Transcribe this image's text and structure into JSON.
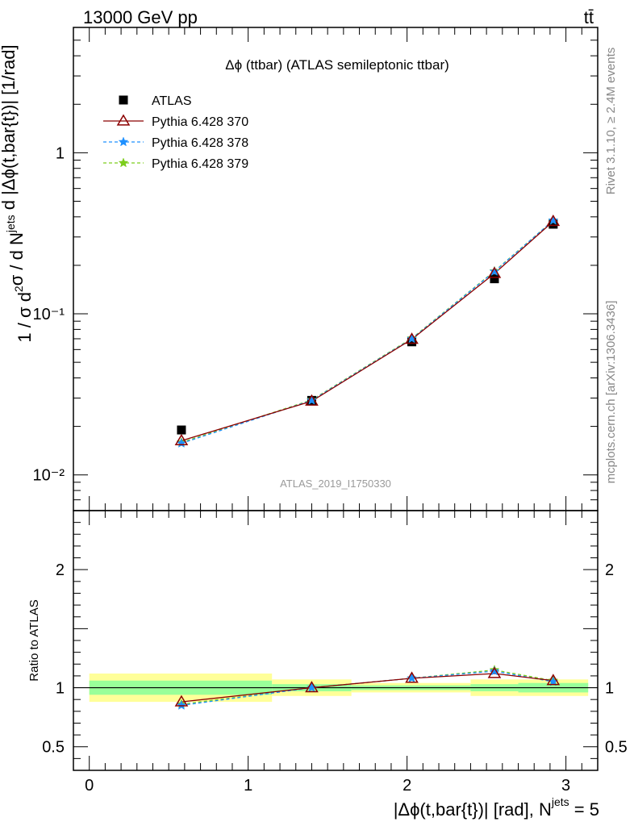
{
  "header": {
    "energy_label": "13000 GeV pp",
    "process_label": "tt̄"
  },
  "side_labels": {
    "rivet": "Rivet 3.1.10, ≥ 2.4M events",
    "source": "mcplots.cern.ch [arXiv:1306.3436]"
  },
  "chart_data": {
    "type": "line",
    "title": "Δϕ (ttbar) (ATLAS semileptonic ttbar)",
    "watermark": "ATLAS_2019_I1750330",
    "xlabel": "|Δϕ(t,bar{t})| [rad], N^jets = 5",
    "ylabel": "1 / σ d²σ / d N^jets d |Δϕ(t,bar{t})| [1/rad]",
    "ratio_ylabel": "Ratio to ATLAS",
    "xlim": [
      -0.1,
      3.2
    ],
    "ylim": [
      0.006,
      6.0
    ],
    "y_scale": "log",
    "ratio_ylim": [
      0.3,
      2.5
    ],
    "x_ticks": [
      "0",
      "1",
      "2",
      "3"
    ],
    "y_ticks": [
      "1",
      "10⁻¹",
      "10⁻²"
    ],
    "ratio_ticks": [
      "0.5",
      "1",
      "2"
    ],
    "legend_position": "top-left",
    "x": [
      0.58,
      1.4,
      2.03,
      2.55,
      2.92
    ],
    "data": {
      "name": "ATLAS",
      "values": [
        0.019,
        0.029,
        0.067,
        0.165,
        0.36
      ],
      "band_edges": [
        0.0,
        1.15,
        1.65,
        2.4,
        2.7,
        3.14
      ],
      "band_stat": [
        [
          0.94,
          1.06
        ],
        [
          0.97,
          1.03
        ],
        [
          0.98,
          1.02
        ],
        [
          0.97,
          1.03
        ],
        [
          0.96,
          1.04
        ]
      ],
      "band_total": [
        [
          0.88,
          1.12
        ],
        [
          0.93,
          1.07
        ],
        [
          0.96,
          1.04
        ],
        [
          0.93,
          1.07
        ],
        [
          0.93,
          1.07
        ]
      ]
    },
    "series": [
      {
        "name": "Pythia 6.428 370",
        "color": "#8b0000",
        "marker": "triangle",
        "dashed": false,
        "values": [
          0.0163,
          0.0287,
          0.0695,
          0.178,
          0.375
        ],
        "ratio": [
          0.88,
          1.0,
          1.08,
          1.12,
          1.06
        ]
      },
      {
        "name": "Pythia 6.428 378",
        "color": "#1e90ff",
        "marker": "star",
        "dashed": true,
        "values": [
          0.0157,
          0.029,
          0.07,
          0.183,
          0.38
        ],
        "ratio": [
          0.85,
          1.0,
          1.08,
          1.14,
          1.05
        ]
      },
      {
        "name": "Pythia 6.428 379",
        "color": "#7ccd1c",
        "marker": "star",
        "dashed": true,
        "values": [
          0.0159,
          0.0292,
          0.0705,
          0.184,
          0.38
        ],
        "ratio": [
          0.86,
          1.0,
          1.08,
          1.15,
          1.06
        ]
      }
    ]
  }
}
